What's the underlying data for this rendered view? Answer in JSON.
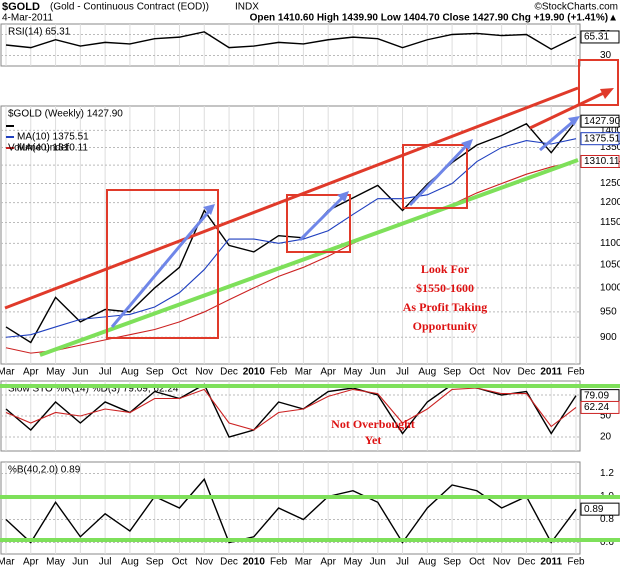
{
  "header": {
    "symbol": "$GOLD",
    "name": "(Gold - Continuous Contract (EOD))",
    "exchange": "INDX",
    "date": "4-Mar-2011",
    "source": "©StockCharts.com",
    "quote": "Open 1410.60  High 1439.90  Low 1404.70  Close 1427.90  Chg +19.90 (+1.41%)▲"
  },
  "chart_data": [
    {
      "type": "line",
      "title": "RSI(14) 65.31",
      "ylim": [
        10,
        90
      ],
      "yticks": [
        30,
        70
      ],
      "series": [
        {
          "name": "RSI(14)",
          "color": "#000000",
          "tag": "65.31",
          "values": [
            50,
            45,
            60,
            48,
            55,
            52,
            62,
            65,
            75,
            45,
            48,
            55,
            52,
            60,
            65,
            62,
            45,
            60,
            70,
            72,
            68,
            70,
            42,
            65.31
          ]
        }
      ]
    },
    {
      "type": "line",
      "title": "$GOLD (Weekly) 1427.90",
      "log": true,
      "ylim": [
        850,
        1475
      ],
      "yticks": [
        900,
        950,
        1000,
        1050,
        1100,
        1150,
        1200,
        1250,
        1300,
        1350,
        1400
      ],
      "categories": [
        "Mar",
        "Apr",
        "May",
        "Jun",
        "Jul",
        "Aug",
        "Sep",
        "Oct",
        "Nov",
        "Dec",
        "2010",
        "Feb",
        "Mar",
        "Apr",
        "May",
        "Jun",
        "Jul",
        "Aug",
        "Sep",
        "Oct",
        "Nov",
        "Dec",
        "2011",
        "Feb"
      ],
      "legend_extra": "Volume undef",
      "annotations": [
        "Look For",
        "$1550-1600",
        "As Profit Taking",
        "Opportunity"
      ],
      "series": [
        {
          "name": "$GOLD (Weekly)",
          "color": "#000000",
          "tag": "1427.90",
          "values": [
            920,
            890,
            980,
            930,
            955,
            950,
            1000,
            1045,
            1180,
            1095,
            1080,
            1118,
            1113,
            1180,
            1212,
            1245,
            1180,
            1248,
            1307,
            1357,
            1385,
            1420,
            1335,
            1427.9
          ]
        },
        {
          "name": "MA(10) 1375.51",
          "color": "#1f3fbf",
          "tag": "1375.51",
          "values": [
            900,
            905,
            920,
            935,
            940,
            945,
            960,
            990,
            1040,
            1110,
            1110,
            1100,
            1110,
            1130,
            1170,
            1210,
            1210,
            1220,
            1250,
            1310,
            1350,
            1370,
            1360,
            1375.51
          ]
        },
        {
          "name": "MA(40) 1310.11",
          "color": "#cc2222",
          "tag": "1310.11",
          "values": [
            880,
            870,
            875,
            885,
            895,
            905,
            915,
            930,
            950,
            975,
            1000,
            1025,
            1045,
            1070,
            1100,
            1125,
            1150,
            1170,
            1195,
            1225,
            1250,
            1275,
            1295,
            1310.11
          ]
        }
      ]
    },
    {
      "type": "line",
      "title": "Slow STO %K(14) %D(3) 79.09, 62.24",
      "ylim": [
        0,
        100
      ],
      "yticks": [
        20,
        50,
        80
      ],
      "annotations": [
        "Not Overbought",
        "Yet"
      ],
      "series": [
        {
          "name": "%K(14)",
          "color": "#000000",
          "tag": "79.09",
          "values": [
            60,
            30,
            70,
            40,
            70,
            55,
            85,
            75,
            95,
            20,
            30,
            70,
            60,
            85,
            90,
            80,
            25,
            70,
            95,
            90,
            80,
            85,
            25,
            79.09
          ]
        },
        {
          "name": "%D(3)",
          "color": "#cc2222",
          "tag": "62.24",
          "values": [
            55,
            40,
            55,
            50,
            60,
            55,
            75,
            75,
            88,
            40,
            30,
            55,
            60,
            78,
            88,
            82,
            40,
            60,
            88,
            90,
            82,
            82,
            35,
            62.24
          ]
        }
      ]
    },
    {
      "type": "line",
      "title": "%B(40,2.0) 0.89",
      "ylim": [
        0.5,
        1.3
      ],
      "yticks": [
        {
          "value": 1.2,
          "label": "1.2"
        },
        {
          "value": 1,
          "label": "1.0"
        },
        0.8,
        0.6
      ],
      "categories": [
        "Mar",
        "Apr",
        "May",
        "Jun",
        "Jul",
        "Aug",
        "Sep",
        "Oct",
        "Nov",
        "Dec",
        "2010",
        "Feb",
        "Mar",
        "Apr",
        "May",
        "Jun",
        "Jul",
        "Aug",
        "Sep",
        "Oct",
        "Nov",
        "Dec",
        "2011",
        "Feb"
      ],
      "series": [
        {
          "name": "%B(40,2.0)",
          "color": "#000000",
          "tag": "0.89",
          "values": [
            0.8,
            0.6,
            0.95,
            0.65,
            0.85,
            0.7,
            1.0,
            0.9,
            1.15,
            0.6,
            0.65,
            0.9,
            0.8,
            1.0,
            1.05,
            0.95,
            0.6,
            0.9,
            1.1,
            1.05,
            0.9,
            1.0,
            0.6,
            0.89
          ]
        }
      ]
    }
  ]
}
